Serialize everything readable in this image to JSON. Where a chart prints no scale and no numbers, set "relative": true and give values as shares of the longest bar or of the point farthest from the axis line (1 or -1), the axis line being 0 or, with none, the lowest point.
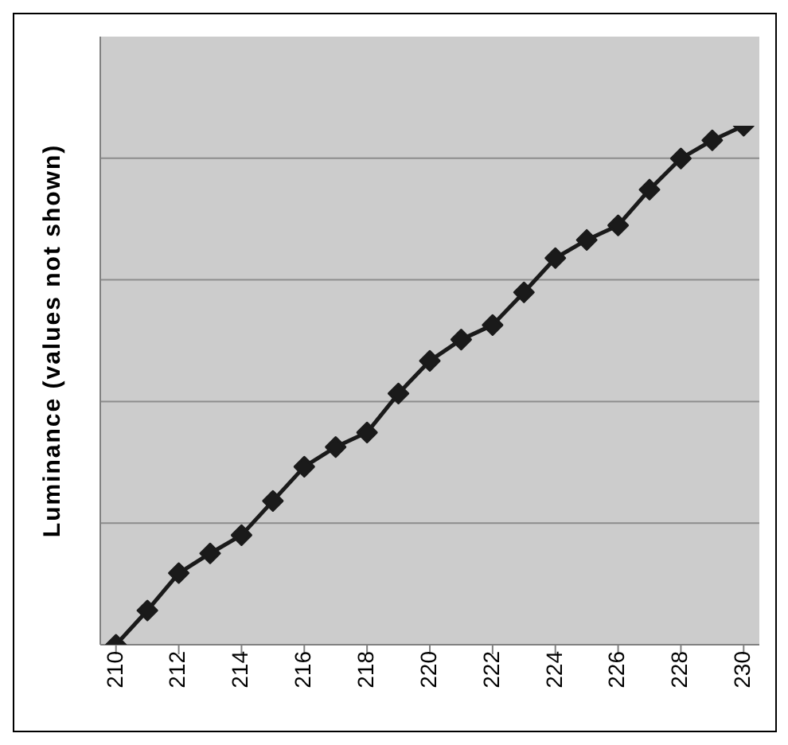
{
  "chart_data": {
    "type": "line",
    "ylabel": "Luminance (values not shown)",
    "relative": true,
    "x": [
      210,
      211,
      212,
      213,
      214,
      215,
      216,
      217,
      218,
      219,
      220,
      221,
      222,
      223,
      224,
      225,
      226,
      227,
      228,
      229,
      230
    ],
    "xlim": [
      209.5,
      230.5
    ],
    "xticks": [
      210,
      212,
      214,
      216,
      218,
      220,
      222,
      224,
      226,
      228,
      230
    ],
    "series": [
      {
        "color": "#1a1a1a",
        "values": [
          0,
          0.066,
          0.138,
          0.176,
          0.211,
          0.277,
          0.343,
          0.381,
          0.409,
          0.484,
          0.547,
          0.588,
          0.616,
          0.679,
          0.745,
          0.78,
          0.808,
          0.877,
          0.937,
          0.972,
          1
        ]
      }
    ],
    "marker": "diamond",
    "line_style": "solid",
    "grid": "y",
    "legend": false
  }
}
